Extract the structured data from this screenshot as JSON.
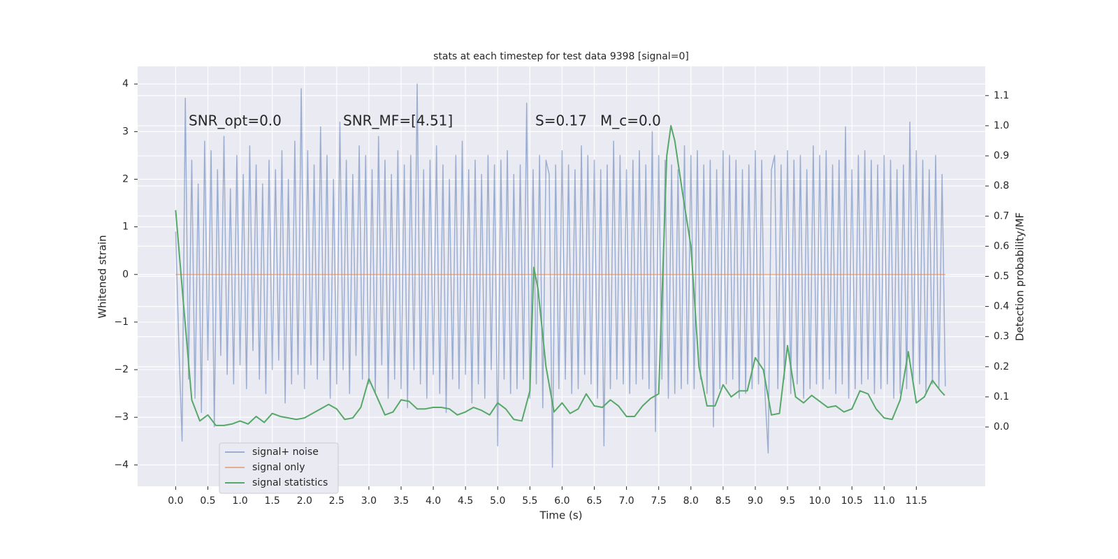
{
  "chart_data": {
    "type": "line",
    "title": "stats at each timestep for test data 9398 [signal=0]",
    "x_label": "Time (s)",
    "y_label": "Whitened strain",
    "y2_label": "Detection probability/MF",
    "annotations": [
      "SNR_opt=0.0",
      "SNR_MF=[4.51]",
      "S=0.17",
      "M_c=0.0"
    ],
    "xlim": [
      -0.59,
      12.57
    ],
    "ylim": [
      -4.45,
      4.37
    ],
    "y2lim": [
      -0.197,
      1.197
    ],
    "xticks": [
      {
        "value": 0,
        "label": "0.0"
      },
      0.5,
      {
        "value": 1,
        "label": "1.0"
      },
      1.5,
      {
        "value": 2,
        "label": "2.0"
      },
      2.5,
      {
        "value": 3,
        "label": "3.0"
      },
      3.5,
      {
        "value": 4,
        "label": "4.0"
      },
      4.5,
      {
        "value": 5,
        "label": "5.0"
      },
      5.5,
      {
        "value": 6,
        "label": "6.0"
      },
      6.5,
      {
        "value": 7,
        "label": "7.0"
      },
      7.5,
      {
        "value": 8,
        "label": "8.0"
      },
      8.5,
      {
        "value": 9,
        "label": "9.0"
      },
      9.5,
      {
        "value": 10,
        "label": "10.0"
      },
      10.5,
      {
        "value": 11,
        "label": "11.0"
      },
      11.5
    ],
    "yticks": [
      {
        "value": -4,
        "label": "−4"
      },
      {
        "value": -3,
        "label": "−3"
      },
      {
        "value": -2,
        "label": "−2"
      },
      {
        "value": -1,
        "label": "−1"
      },
      0,
      1,
      2,
      3,
      4
    ],
    "y2ticks": [
      {
        "value": 0,
        "label": "0.0"
      },
      0.1,
      0.2,
      0.3,
      0.4,
      0.5,
      0.6,
      0.7,
      0.8,
      0.9,
      {
        "value": 1,
        "label": "1.0"
      },
      1.1
    ],
    "grid": true,
    "legend_position": "lower left",
    "series": [
      {
        "name": "signal+ noise",
        "color": "#4c72b0",
        "opacity": 0.5,
        "x": [
          0,
          0.05,
          0.1,
          0.15,
          0.2,
          0.25,
          0.3,
          0.35,
          0.4,
          0.45,
          0.5,
          0.55,
          0.6,
          0.65,
          0.7,
          0.75,
          0.8,
          0.85,
          0.9,
          0.95,
          1,
          1.05,
          1.1,
          1.15,
          1.2,
          1.25,
          1.3,
          1.35,
          1.4,
          1.45,
          1.5,
          1.55,
          1.6,
          1.65,
          1.7,
          1.75,
          1.8,
          1.85,
          1.9,
          1.95,
          2,
          2.05,
          2.1,
          2.15,
          2.2,
          2.25,
          2.3,
          2.35,
          2.4,
          2.45,
          2.5,
          2.55,
          2.6,
          2.65,
          2.7,
          2.75,
          2.8,
          2.85,
          2.9,
          2.95,
          3,
          3.05,
          3.1,
          3.15,
          3.2,
          3.25,
          3.3,
          3.35,
          3.4,
          3.45,
          3.5,
          3.55,
          3.6,
          3.65,
          3.7,
          3.75,
          3.8,
          3.85,
          3.9,
          3.95,
          4,
          4.05,
          4.1,
          4.15,
          4.2,
          4.25,
          4.3,
          4.35,
          4.4,
          4.45,
          4.5,
          4.55,
          4.6,
          4.65,
          4.7,
          4.75,
          4.8,
          4.85,
          4.9,
          4.95,
          5,
          5.05,
          5.1,
          5.15,
          5.2,
          5.25,
          5.3,
          5.35,
          5.4,
          5.45,
          5.5,
          5.55,
          5.6,
          5.65,
          5.7,
          5.75,
          5.8,
          5.85,
          5.9,
          5.95,
          6,
          6.05,
          6.1,
          6.15,
          6.2,
          6.25,
          6.3,
          6.35,
          6.4,
          6.45,
          6.5,
          6.55,
          6.6,
          6.65,
          6.7,
          6.75,
          6.8,
          6.85,
          6.9,
          6.95,
          7,
          7.05,
          7.1,
          7.15,
          7.2,
          7.25,
          7.3,
          7.35,
          7.4,
          7.45,
          7.5,
          7.55,
          7.6,
          7.65,
          7.7,
          7.75,
          7.8,
          7.85,
          7.9,
          7.95,
          8,
          8.05,
          8.1,
          8.15,
          8.2,
          8.25,
          8.3,
          8.35,
          8.4,
          8.45,
          8.5,
          8.55,
          8.6,
          8.65,
          8.7,
          8.75,
          8.8,
          8.85,
          8.9,
          8.95,
          9,
          9.05,
          9.1,
          9.15,
          9.2,
          9.25,
          9.3,
          9.35,
          9.4,
          9.45,
          9.5,
          9.55,
          9.6,
          9.65,
          9.7,
          9.75,
          9.8,
          9.85,
          9.9,
          9.95,
          10,
          10.05,
          10.1,
          10.15,
          10.2,
          10.25,
          10.3,
          10.35,
          10.4,
          10.45,
          10.5,
          10.55,
          10.6,
          10.65,
          10.7,
          10.75,
          10.8,
          10.85,
          10.9,
          10.95,
          11,
          11.05,
          11.1,
          11.15,
          11.2,
          11.25,
          11.3,
          11.35,
          11.4,
          11.45,
          11.5,
          11.55,
          11.6,
          11.65,
          11.7,
          11.75,
          11.8,
          11.85,
          11.9,
          11.95
        ],
        "values": [
          0.9,
          -1.5,
          -3.5,
          3.7,
          -2.2,
          2.4,
          -2.6,
          1.9,
          -2.9,
          2.8,
          -1.8,
          2.6,
          -3.2,
          2.2,
          -1.7,
          2.9,
          -2.1,
          1.8,
          -2.3,
          2.5,
          -1.9,
          2.1,
          -2.4,
          2.7,
          -1.6,
          2.3,
          -2.2,
          1.9,
          -2.5,
          2.4,
          -2.0,
          2.2,
          -1.8,
          2.6,
          -2.7,
          2.0,
          -2.3,
          2.8,
          -2.1,
          3.9,
          -2.4,
          2.6,
          -1.9,
          2.3,
          -2.2,
          3.1,
          -1.8,
          2.5,
          -2.6,
          2.0,
          -2.3,
          3.2,
          -2.0,
          2.4,
          -2.5,
          2.1,
          -1.7,
          2.7,
          -2.2,
          2.5,
          -2.3,
          2.2,
          -2.5,
          2.9,
          -1.9,
          2.4,
          -2.6,
          2.1,
          -2.2,
          2.6,
          -2.4,
          2.3,
          -2.8,
          2.5,
          -2.0,
          4.0,
          -2.3,
          2.2,
          -2.6,
          2.4,
          -2.1,
          2.7,
          -2.5,
          2.3,
          -2.9,
          2.0,
          -2.2,
          2.5,
          -2.4,
          2.8,
          -2.1,
          2.2,
          -2.7,
          2.4,
          -2.3,
          2.1,
          -2.6,
          2.5,
          -2.0,
          2.3,
          -3.6,
          2.4,
          -2.2,
          2.6,
          -2.5,
          2.1,
          -2.4,
          2.3,
          -2.2,
          3.6,
          -2.6,
          2.2,
          -2.3,
          2.5,
          -2.8,
          2.4,
          2.1,
          -4.05,
          2.3,
          -2.4,
          2.6,
          -2.2,
          2.3,
          -2.5,
          2.2,
          -2.4,
          2.7,
          -2.1,
          2.5,
          -2.3,
          2.4,
          -2.6,
          2.2,
          -3.6,
          2.3,
          -2.4,
          2.8,
          -2.2,
          2.5,
          -2.3,
          2.2,
          -2.5,
          2.4,
          -2.3,
          2.6,
          -2.2,
          2.3,
          -2.4,
          3.0,
          -3.3,
          2.5,
          -2.2,
          2.4,
          -2.6,
          2.3,
          -2.5,
          2.2,
          -2.4,
          2.7,
          -2.3,
          2.5,
          -2.4,
          2.6,
          -2.2,
          2.3,
          -2.5,
          2.4,
          -3.2,
          2.2,
          -2.4,
          2.6,
          -2.3,
          2.5,
          -2.2,
          2.4,
          -2.6,
          2.2,
          -2.5,
          2.3,
          -2.4,
          2.6,
          -2.3,
          2.4,
          -2.5,
          -3.75,
          2.2,
          2.5,
          -2.4,
          2.3,
          -2.2,
          2.6,
          -2.5,
          2.4,
          -2.3,
          2.5,
          -2.6,
          2.2,
          -2.4,
          2.7,
          -2.3,
          2.5,
          -2.4,
          2.6,
          -2.2,
          2.3,
          -2.5,
          2.4,
          -2.3,
          3.1,
          -2.6,
          2.2,
          -2.4,
          2.5,
          -2.3,
          2.6,
          -2.2,
          2.4,
          -2.5,
          2.3,
          -2.4,
          2.5,
          -2.3,
          2.4,
          -2.6,
          2.2,
          -2.5,
          2.3,
          -2.4,
          3.2,
          -2.2,
          2.6,
          -2.3,
          2.4,
          -2.5,
          2.2,
          -2.3,
          2.5,
          -2.4,
          2.1,
          -2.35
        ]
      },
      {
        "name": "signal only",
        "color": "#dd8452",
        "opacity": 0.6,
        "x": [
          0,
          11.95
        ],
        "values": [
          0,
          0
        ]
      },
      {
        "name": "signal statistics",
        "color": "#55a868",
        "opacity": 1,
        "axis": "y2",
        "x": [
          0,
          0.125,
          0.25,
          0.375,
          0.5,
          0.625,
          0.75,
          0.875,
          1,
          1.125,
          1.25,
          1.375,
          1.5,
          1.625,
          1.75,
          1.875,
          2,
          2.125,
          2.25,
          2.375,
          2.5,
          2.625,
          2.75,
          2.875,
          3,
          3.125,
          3.25,
          3.375,
          3.5,
          3.625,
          3.75,
          3.875,
          4,
          4.125,
          4.25,
          4.375,
          4.5,
          4.625,
          4.75,
          4.875,
          5,
          5.125,
          5.25,
          5.375,
          5.5,
          5.56,
          5.625,
          5.75,
          5.875,
          6,
          6.125,
          6.25,
          6.375,
          6.5,
          6.625,
          6.75,
          6.875,
          7,
          7.125,
          7.25,
          7.375,
          7.5,
          7.625,
          7.69,
          7.75,
          7.875,
          8,
          8.125,
          8.25,
          8.375,
          8.5,
          8.625,
          8.75,
          8.875,
          9,
          9.125,
          9.25,
          9.375,
          9.5,
          9.625,
          9.75,
          9.875,
          10,
          10.125,
          10.25,
          10.375,
          10.5,
          10.625,
          10.75,
          10.875,
          11,
          11.125,
          11.25,
          11.375,
          11.5,
          11.625,
          11.75,
          11.875,
          11.94
        ],
        "values": [
          0.72,
          0.4,
          0.09,
          0.02,
          0.04,
          0.005,
          0.005,
          0.01,
          0.02,
          0.01,
          0.035,
          0.015,
          0.045,
          0.035,
          0.03,
          0.025,
          0.03,
          0.045,
          0.06,
          0.075,
          0.06,
          0.025,
          0.03,
          0.065,
          0.16,
          0.1,
          0.04,
          0.05,
          0.09,
          0.085,
          0.06,
          0.06,
          0.065,
          0.065,
          0.06,
          0.04,
          0.05,
          0.065,
          0.055,
          0.04,
          0.08,
          0.06,
          0.025,
          0.02,
          0.12,
          0.53,
          0.46,
          0.2,
          0.05,
          0.08,
          0.045,
          0.06,
          0.11,
          0.07,
          0.065,
          0.09,
          0.07,
          0.035,
          0.035,
          0.07,
          0.095,
          0.11,
          0.9,
          1.0,
          0.95,
          0.77,
          0.6,
          0.2,
          0.07,
          0.07,
          0.14,
          0.1,
          0.12,
          0.12,
          0.23,
          0.19,
          0.04,
          0.045,
          0.27,
          0.1,
          0.08,
          0.105,
          0.085,
          0.065,
          0.07,
          0.05,
          0.06,
          0.12,
          0.11,
          0.06,
          0.03,
          0.025,
          0.09,
          0.25,
          0.08,
          0.1,
          0.155,
          0.12,
          0.105
        ]
      }
    ]
  }
}
